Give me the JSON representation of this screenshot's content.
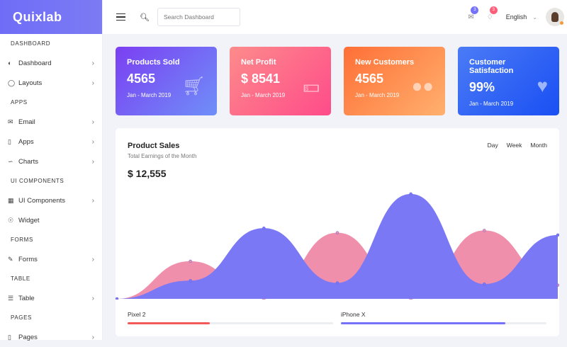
{
  "app": {
    "name": "Quixlab"
  },
  "sidebar": {
    "sections": [
      {
        "title": "DASHBOARD",
        "items": [
          {
            "label": "Dashboard",
            "icon": "speedometer-icon",
            "chevron": true
          },
          {
            "label": "Layouts",
            "icon": "bulb-icon",
            "chevron": true
          }
        ]
      },
      {
        "title": "APPS",
        "items": [
          {
            "label": "Email",
            "icon": "envelope-icon",
            "chevron": true
          },
          {
            "label": "Apps",
            "icon": "phone-icon",
            "chevron": true
          },
          {
            "label": "Charts",
            "icon": "graph-icon",
            "chevron": true
          }
        ]
      },
      {
        "title": "UI COMPONENTS",
        "items": [
          {
            "label": "UI Components",
            "icon": "grid-icon",
            "chevron": true
          },
          {
            "label": "Widget",
            "icon": "badge-icon",
            "chevron": false
          }
        ]
      },
      {
        "title": "FORMS",
        "items": [
          {
            "label": "Forms",
            "icon": "note-icon",
            "chevron": true
          }
        ]
      },
      {
        "title": "TABLE",
        "items": [
          {
            "label": "Table",
            "icon": "menu-icon",
            "chevron": true
          }
        ]
      },
      {
        "title": "PAGES",
        "items": [
          {
            "label": "Pages",
            "icon": "notebook-icon",
            "chevron": true
          }
        ]
      }
    ]
  },
  "header": {
    "search_placeholder": "Search Dashboard",
    "messages_count": "3",
    "notifications_count": "3",
    "language": "English",
    "badge_colors": {
      "messages": "#7571f9",
      "notifications": "#ff5e7a"
    }
  },
  "cards": [
    {
      "title": "Products Sold",
      "value": "4565",
      "period": "Jan - March 2019",
      "icon": "cart-icon",
      "gradient": [
        "#7b3ff2",
        "#6f8ff8"
      ]
    },
    {
      "title": "Net Profit",
      "value": "$ 8541",
      "period": "Jan - March 2019",
      "icon": "money-icon",
      "gradient": [
        "#fd8b8b",
        "#fe4b8a"
      ]
    },
    {
      "title": "New Customers",
      "value": "4565",
      "period": "Jan - March 2019",
      "icon": "users-icon",
      "gradient": [
        "#ff6f36",
        "#ffb06e"
      ]
    },
    {
      "title": "Customer Satisfaction",
      "value": "99%",
      "period": "Jan - March 2019",
      "icon": "heart-icon",
      "gradient": [
        "#4b7bf6",
        "#1a4ff3"
      ]
    }
  ],
  "sales": {
    "title": "Product Sales",
    "subtitle": "Total Earnings of the Month",
    "total": "$ 12,555",
    "ranges": [
      "Day",
      "Week",
      "Month"
    ],
    "progress": [
      {
        "label": "Pixel 2",
        "percent": 40,
        "color": "#f25a5a"
      },
      {
        "label": "iPhone X",
        "percent": 80,
        "color": "#7571f9"
      }
    ]
  },
  "chart_data": {
    "type": "area",
    "series": [
      {
        "color": "#f08fab",
        "values": [
          0,
          33,
          0,
          58,
          0,
          60,
          12
        ]
      },
      {
        "color": "#7b78f6",
        "values": [
          0,
          16,
          62,
          14,
          92,
          13,
          56
        ]
      }
    ]
  }
}
